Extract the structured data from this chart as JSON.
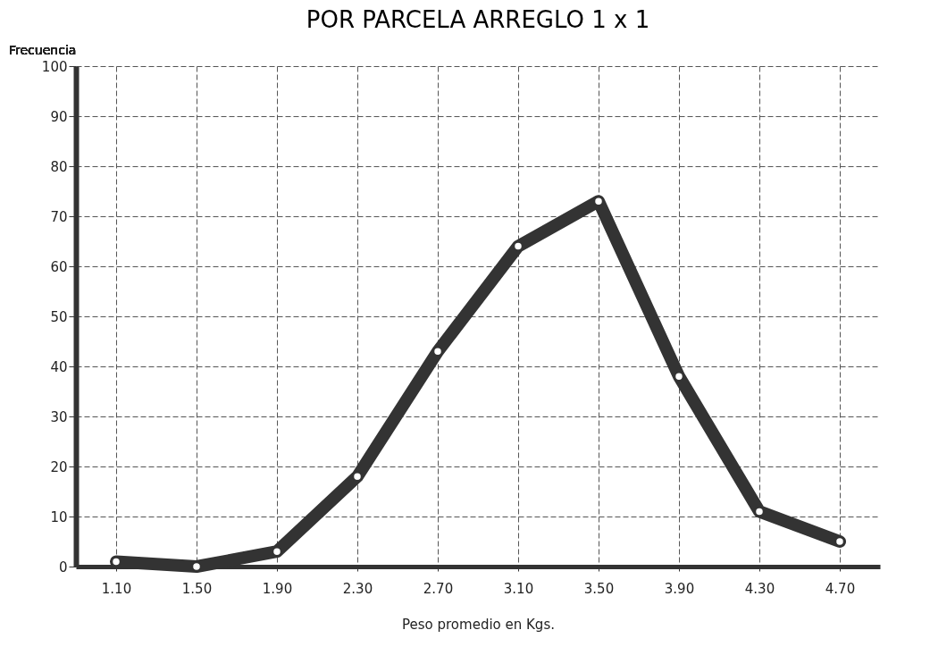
{
  "chart_data": {
    "type": "line",
    "title": "POR PARCELA ARREGLO 1 x 1",
    "ylabel": "Frecuencia",
    "xlabel": "Peso promedio en Kgs.",
    "categories": [
      "1.10",
      "1.50",
      "1.90",
      "2.30",
      "2.70",
      "3.10",
      "3.50",
      "3.90",
      "4.30",
      "4.70"
    ],
    "values": [
      1,
      0,
      3,
      18,
      43,
      64,
      73,
      38,
      11,
      5
    ],
    "color": "#333333",
    "ylim": [
      0,
      100
    ],
    "yticks": [
      0,
      10,
      20,
      30,
      40,
      50,
      60,
      70,
      80,
      90,
      100
    ],
    "grid": true,
    "marker": "circle",
    "line_style": "solid"
  }
}
